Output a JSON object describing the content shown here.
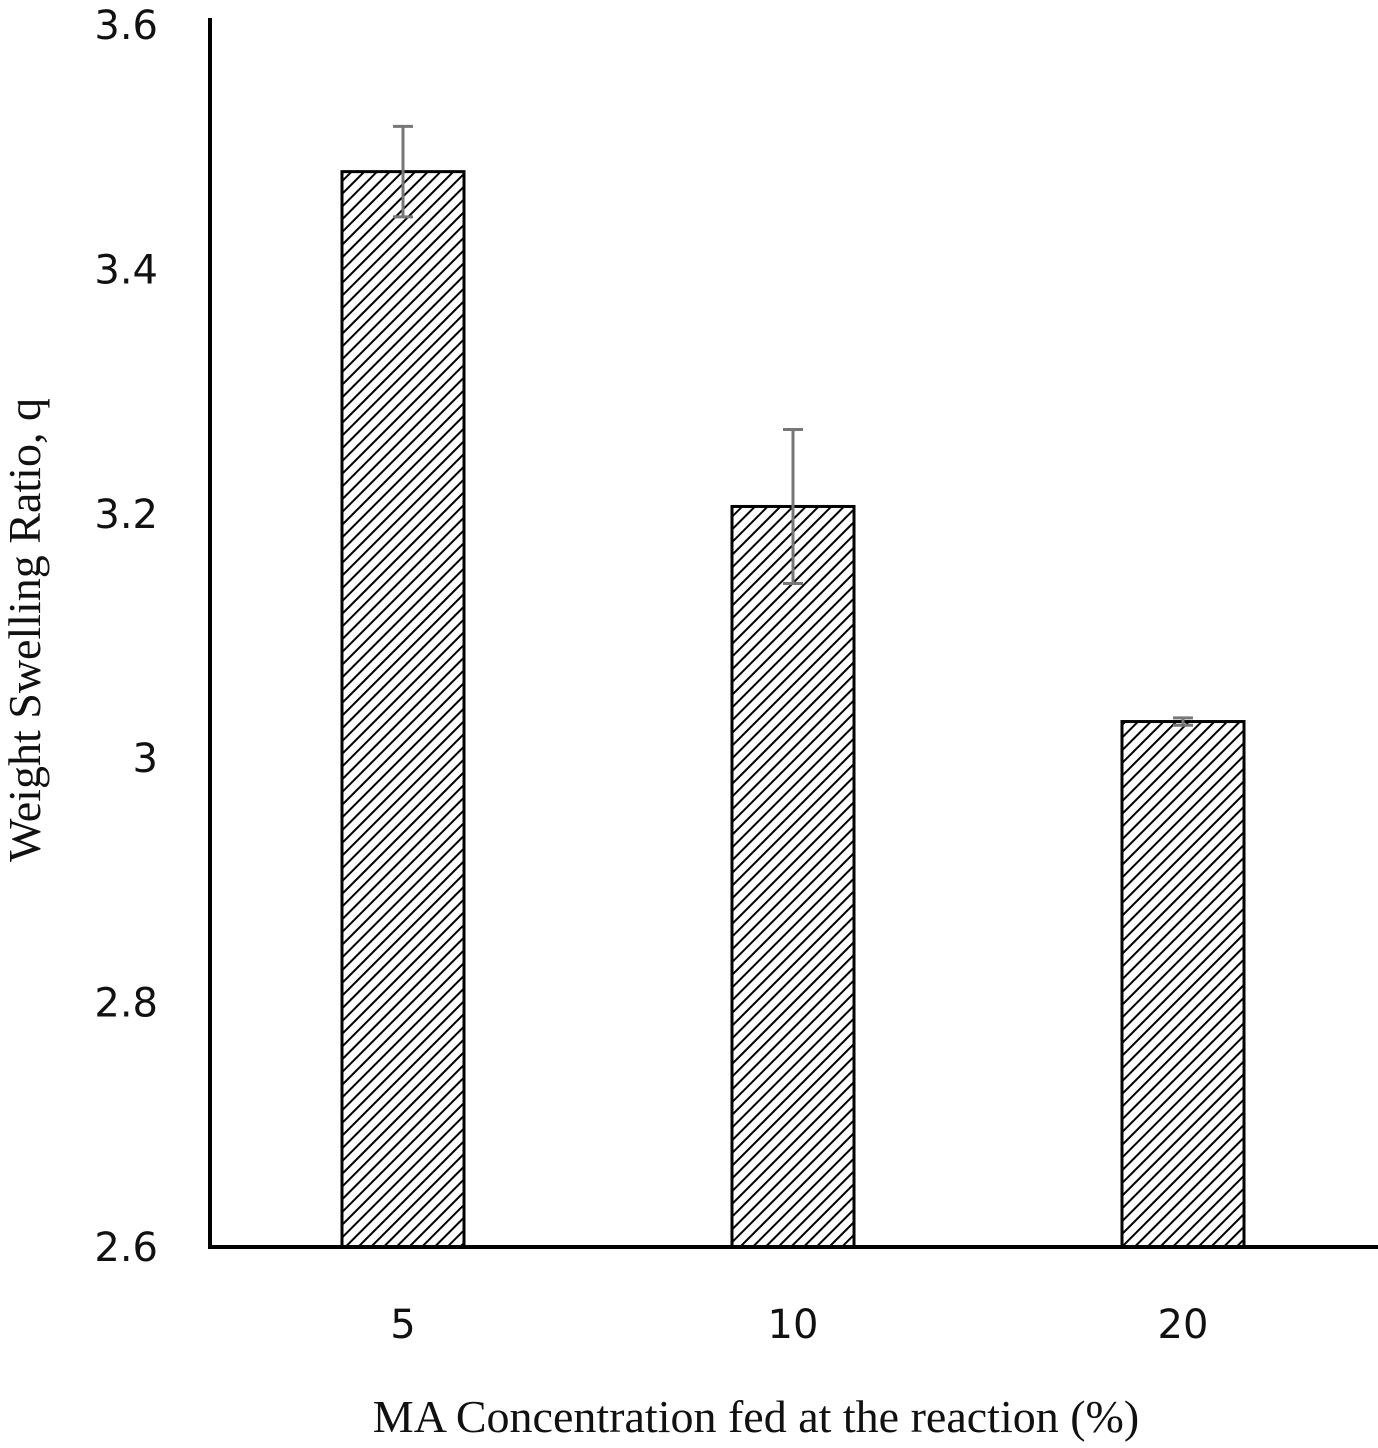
{
  "chart_data": {
    "type": "bar",
    "categories": [
      "5",
      "10",
      "20"
    ],
    "values": [
      3.48,
      3.206,
      3.03
    ],
    "error": [
      0.037,
      0.063,
      0.003
    ],
    "xlabel": "MA Concentration fed at the reaction (%)",
    "ylabel": "Weight Swelling Ratio, q",
    "ylim": [
      2.6,
      3.6
    ],
    "yticks": [
      "2.6",
      "2.8",
      "3",
      "3.2",
      "3.4",
      "3.6"
    ],
    "grid": false,
    "legend": "none",
    "bar_fill": "hatched",
    "colors": {
      "bar_edge": "#000000",
      "hatch": "#000000",
      "error_bar": "#777777",
      "axis": "#000000"
    }
  }
}
